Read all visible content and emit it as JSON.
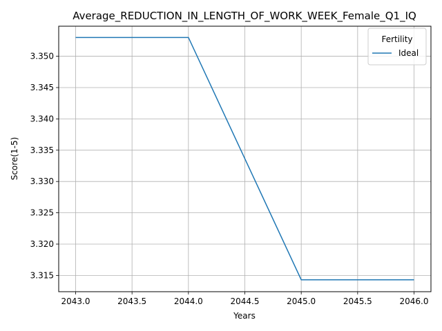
{
  "chart_data": {
    "type": "line",
    "title": "Average_REDUCTION_IN_LENGTH_OF_WORK_WEEK_Female_Q1_IQ",
    "xlabel": "Years",
    "ylabel": "Score(1-5)",
    "xlim": [
      2042.85,
      2046.15
    ],
    "ylim": [
      3.3124,
      3.3548
    ],
    "xticks": [
      2043.0,
      2043.5,
      2044.0,
      2044.5,
      2045.0,
      2045.5,
      2046.0
    ],
    "xtick_labels": [
      "2043.0",
      "2043.5",
      "2044.0",
      "2044.5",
      "2045.0",
      "2045.5",
      "2046.0"
    ],
    "yticks": [
      3.315,
      3.32,
      3.325,
      3.33,
      3.335,
      3.34,
      3.345,
      3.35
    ],
    "ytick_labels": [
      "3.315",
      "3.320",
      "3.325",
      "3.330",
      "3.335",
      "3.340",
      "3.345",
      "3.350"
    ],
    "grid": true,
    "legend": {
      "title": "Fertility",
      "placement": "top-right"
    },
    "series": [
      {
        "name": "Ideal",
        "color": "#1f77b4",
        "x": [
          2043,
          2044,
          2045,
          2046
        ],
        "y": [
          3.353,
          3.353,
          3.3143,
          3.3143
        ]
      }
    ]
  }
}
